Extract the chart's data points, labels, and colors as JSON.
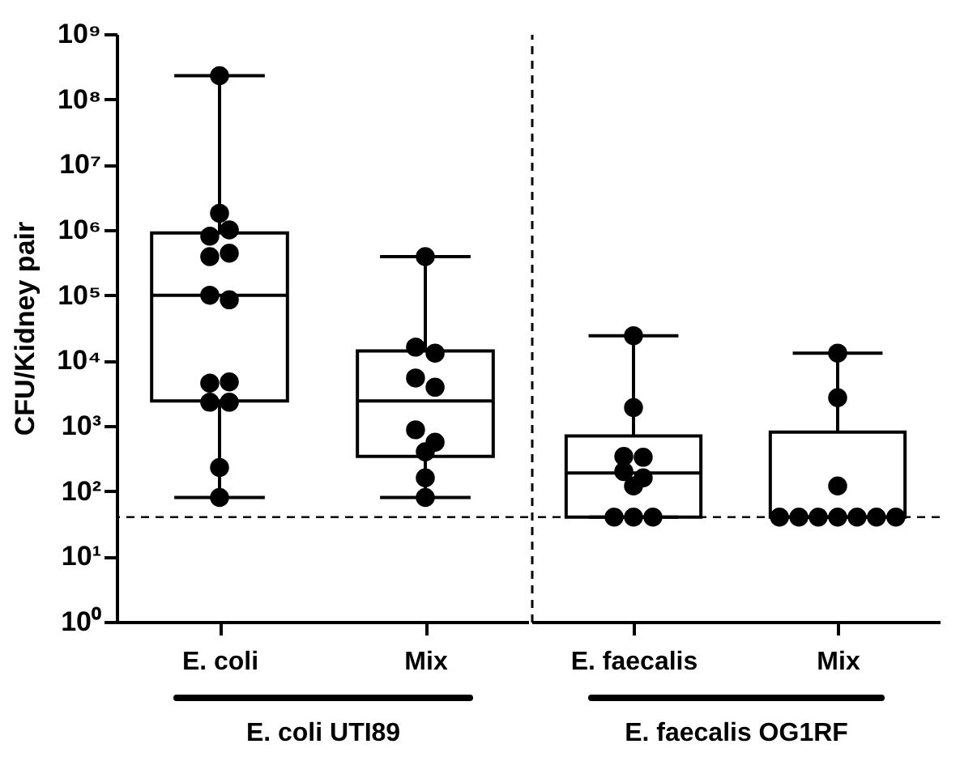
{
  "chart_data": [
    {
      "type": "box",
      "categories": [
        "E. coli",
        "Mix"
      ],
      "xlabel": "E. coli UTI89",
      "ylabel": "CFU/Kidney pair",
      "log": true,
      "grid": false,
      "ylim": [
        1,
        1000000000
      ],
      "yticks": [
        {
          "value": 1,
          "label": "10⁰"
        },
        {
          "value": 10,
          "label": "10¹"
        },
        {
          "value": 100,
          "label": "10²"
        },
        {
          "value": 1000,
          "label": "10³"
        },
        {
          "value": 10000,
          "label": "10⁴"
        },
        {
          "value": 100000,
          "label": "10⁵"
        },
        {
          "value": 1000000,
          "label": "10⁶"
        },
        {
          "value": 10000000,
          "label": "10⁷"
        },
        {
          "value": 100000000,
          "label": "10⁸"
        },
        {
          "value": 1000000000,
          "label": "10⁹"
        }
      ],
      "boxes": [
        {
          "low": 80,
          "q1": 2400,
          "median": 100000,
          "q3": 900000,
          "high": 230000000
        },
        {
          "low": 80,
          "q1": 340,
          "median": 2400,
          "q3": 14000,
          "high": 390000
        }
      ],
      "series": [
        {
          "type": "scatter",
          "marker": "circle",
          "color": "#000000",
          "x": [
            "E. coli",
            "E. coli",
            "E. coli",
            "E. coli",
            "E. coli",
            "E. coli",
            "E. coli",
            "E. coli",
            "E. coli",
            "E. coli",
            "E. coli",
            "E. coli",
            "E. coli",
            "E. coli",
            "Mix",
            "Mix",
            "Mix",
            "Mix",
            "Mix",
            "Mix",
            "Mix",
            "Mix",
            "Mix",
            "Mix"
          ],
          "values": [
            230000000,
            1800000,
            800000,
            1000000,
            390000,
            440000,
            100000,
            85000,
            4500,
            4700,
            2300,
            2300,
            230,
            80,
            390000,
            16000,
            13000,
            5400,
            3900,
            870,
            560,
            400,
            160,
            80
          ]
        }
      ],
      "ref_lines": [
        {
          "axis": "y",
          "value": 40,
          "line_style": "dashed",
          "color": "#000000"
        }
      ]
    },
    {
      "type": "box",
      "categories": [
        "E. faecalis",
        "Mix"
      ],
      "xlabel": "E. faecalis OG1RF",
      "log": true,
      "grid": false,
      "tick_labels": "x",
      "ylim": [
        1,
        1000000000
      ],
      "boxes": [
        {
          "low": 40,
          "q1": 40,
          "median": 190,
          "q3": 700,
          "high": 24000
        },
        {
          "low": 40,
          "q1": 40,
          "median": 40,
          "q3": 800,
          "high": 13000
        }
      ],
      "series": [
        {
          "type": "scatter",
          "marker": "circle",
          "color": "#000000",
          "x": [
            "E. faecalis",
            "E. faecalis",
            "E. faecalis",
            "E. faecalis",
            "E. faecalis",
            "E. faecalis",
            "E. faecalis",
            "E. faecalis",
            "E. faecalis",
            "E. faecalis",
            "Mix",
            "Mix",
            "Mix",
            "Mix",
            "Mix",
            "Mix",
            "Mix",
            "Mix",
            "Mix",
            "Mix"
          ],
          "values": [
            24000,
            1900,
            340,
            330,
            200,
            160,
            120,
            40,
            40,
            40,
            13000,
            2700,
            120,
            40,
            40,
            40,
            40,
            40,
            40,
            40
          ]
        }
      ],
      "ref_lines": [
        {
          "axis": "y",
          "value": 40,
          "line_style": "dashed",
          "color": "#000000"
        }
      ]
    }
  ]
}
